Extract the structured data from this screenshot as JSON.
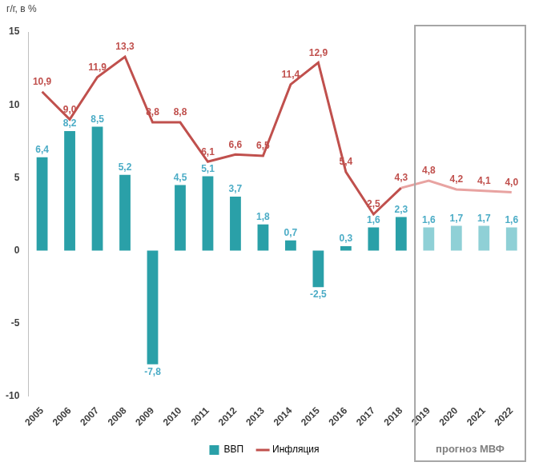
{
  "chart_data": {
    "type": "bar",
    "ylabel": "г/г, в %",
    "categories": [
      "2005",
      "2006",
      "2007",
      "2008",
      "2009",
      "2010",
      "2011",
      "2012",
      "2013",
      "2014",
      "2015",
      "2016",
      "2017",
      "2018",
      "2019",
      "2020",
      "2021",
      "2022"
    ],
    "series": [
      {
        "name": "ВВП",
        "type": "bar",
        "color": "#2aa0a8",
        "colors": [
          "#2aa0a8",
          "#2aa0a8",
          "#2aa0a8",
          "#2aa0a8",
          "#2aa0a8",
          "#2aa0a8",
          "#2aa0a8",
          "#2aa0a8",
          "#2aa0a8",
          "#2aa0a8",
          "#2aa0a8",
          "#2aa0a8",
          "#2aa0a8",
          "#2aa0a8",
          "#8fd0d6",
          "#8fd0d6",
          "#8fd0d6",
          "#8fd0d6"
        ],
        "values": [
          6.4,
          8.2,
          8.5,
          5.2,
          -7.8,
          4.5,
          5.1,
          3.7,
          1.8,
          0.7,
          -2.5,
          0.3,
          1.6,
          2.3,
          1.6,
          1.7,
          1.7,
          1.6
        ],
        "value_labels": [
          "6,4",
          "8,2",
          "8,5",
          "5,2",
          "-7,8",
          "4,5",
          "5,1",
          "3,7",
          "1,8",
          "0,7",
          "-2,5",
          "0,3",
          "1,6",
          "2,3",
          "1,6",
          "1,7",
          "1,7",
          "1,6"
        ]
      },
      {
        "name": "Инфляция",
        "type": "line",
        "color": "#c0504d",
        "marker": "none",
        "colors": [
          "#c0504d",
          "#c0504d",
          "#c0504d",
          "#c0504d",
          "#c0504d",
          "#c0504d",
          "#c0504d",
          "#c0504d",
          "#c0504d",
          "#c0504d",
          "#c0504d",
          "#c0504d",
          "#c0504d",
          "#c0504d",
          "#e8a3a1",
          "#e8a3a1",
          "#e8a3a1",
          "#e8a3a1"
        ],
        "values": [
          10.9,
          9.0,
          11.9,
          13.3,
          8.8,
          8.8,
          6.1,
          6.6,
          6.5,
          11.4,
          12.9,
          5.4,
          2.5,
          4.3,
          4.8,
          4.2,
          4.1,
          4.0
        ],
        "value_labels": [
          "10,9",
          "9,0",
          "11,9",
          "13,3",
          "8,8",
          "8,8",
          "6,1",
          "6,6",
          "6,5",
          "11,4",
          "12,9",
          "5,4",
          "2,5",
          "4,3",
          "4,8",
          "4,2",
          "4,1",
          "4,0"
        ]
      }
    ],
    "ylim": [
      -10,
      15
    ],
    "yticks": [
      -10,
      -5,
      0,
      5,
      10,
      15
    ],
    "grid": false,
    "legend": "bottom",
    "data_labels": true,
    "annotations": [
      {
        "text": "прогноз МВФ",
        "from": "2019",
        "to": "2022"
      }
    ]
  }
}
